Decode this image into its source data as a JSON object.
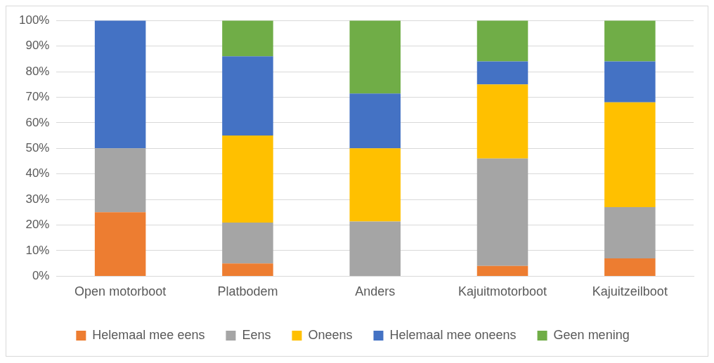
{
  "chart_data": {
    "type": "bar",
    "stacked": true,
    "categories": [
      "Open motorboot",
      "Platbodem",
      "Anders",
      "Kajuitmotorboot",
      "Kajuitzeilboot"
    ],
    "series": [
      {
        "name": "Helemaal mee eens",
        "color": "#ed7d31",
        "values": [
          25,
          5,
          0,
          4,
          7
        ]
      },
      {
        "name": "Eens",
        "color": "#a5a5a5",
        "values": [
          25,
          16,
          21.4,
          42,
          20
        ]
      },
      {
        "name": "Oneens",
        "color": "#ffc000",
        "values": [
          0,
          34,
          28.6,
          29,
          41
        ]
      },
      {
        "name": "Helemaal mee oneens",
        "color": "#4472c4",
        "values": [
          50,
          31,
          21.4,
          9,
          16
        ]
      },
      {
        "name": "Geen mening",
        "color": "#70ad47",
        "values": [
          0,
          14,
          28.6,
          16,
          16
        ]
      }
    ],
    "ylim": [
      0,
      100
    ],
    "yticks": [
      {
        "value": 0,
        "label": "0%"
      },
      {
        "value": 10,
        "label": "10%"
      },
      {
        "value": 20,
        "label": "20%"
      },
      {
        "value": 30,
        "label": "30%"
      },
      {
        "value": 40,
        "label": "40%"
      },
      {
        "value": 50,
        "label": "50%"
      },
      {
        "value": 60,
        "label": "60%"
      },
      {
        "value": 70,
        "label": "70%"
      },
      {
        "value": 80,
        "label": "80%"
      },
      {
        "value": 90,
        "label": "90%"
      },
      {
        "value": 100,
        "label": "100%"
      }
    ],
    "grid": "y",
    "legend": "bottom"
  }
}
